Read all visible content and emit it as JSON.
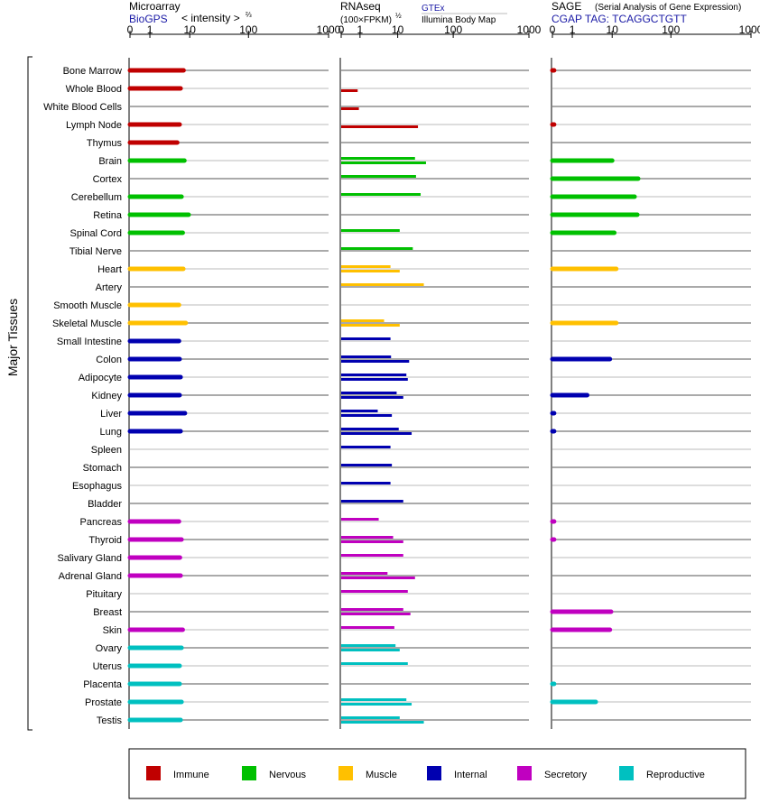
{
  "panels": {
    "microarray": {
      "title": "Microarray",
      "source": "BioGPS",
      "scale_label": "< intensity >",
      "scale_exp": "⅔",
      "ticks": [
        "0",
        "1",
        "10",
        "100",
        "1000"
      ]
    },
    "rnaseq": {
      "title": "RNAseq",
      "units_label": "(100×FPKM)",
      "units_exp": "½",
      "series_labels": [
        "GTEx",
        "Illumina Body Map"
      ],
      "ticks": [
        "0",
        "1",
        "10",
        "100",
        "1000"
      ]
    },
    "sage": {
      "title": "SAGE",
      "subtitle": "(Serial Analysis of Gene Expression)",
      "tag": "CGAP TAG: TCAGGCTGTT",
      "ticks": [
        "0",
        "1",
        "10",
        "100",
        "1000"
      ]
    }
  },
  "y_axis_label": "Major Tissues",
  "legend": [
    {
      "label": "Immune",
      "color": "#c00000"
    },
    {
      "label": "Nervous",
      "color": "#00c000"
    },
    {
      "label": "Muscle",
      "color": "#ffc000"
    },
    {
      "label": "Internal",
      "color": "#0000b0"
    },
    {
      "label": "Secretory",
      "color": "#c000c0"
    },
    {
      "label": "Reproductive",
      "color": "#00c0c0"
    }
  ],
  "chart_data": {
    "type": "bar",
    "x_scale": "power",
    "xlim": [
      0,
      1000
    ],
    "tissues": [
      {
        "name": "Bone Marrow",
        "group": "Immune",
        "micro": 7.5,
        "gtex": null,
        "ibm": null,
        "sage": 0.01
      },
      {
        "name": "Whole Blood",
        "group": "Immune",
        "micro": 6.5,
        "gtex": null,
        "ibm": 0.8,
        "sage": null
      },
      {
        "name": "White Blood Cells",
        "group": "Immune",
        "micro": null,
        "gtex": null,
        "ibm": 0.9,
        "sage": null
      },
      {
        "name": "Lymph Node",
        "group": "Immune",
        "micro": 6.2,
        "gtex": null,
        "ibm": 25,
        "sage": 0.01
      },
      {
        "name": "Thymus",
        "group": "Immune",
        "micro": 5.5,
        "gtex": null,
        "ibm": null,
        "sage": null
      },
      {
        "name": "Brain",
        "group": "Nervous",
        "micro": 7.8,
        "gtex": 22,
        "ibm": 35,
        "sage": 10
      },
      {
        "name": "Cortex",
        "group": "Nervous",
        "micro": null,
        "gtex": 23,
        "ibm": null,
        "sage": 30
      },
      {
        "name": "Cerebellum",
        "group": "Nervous",
        "micro": 6.8,
        "gtex": 28,
        "ibm": null,
        "sage": 26
      },
      {
        "name": "Retina",
        "group": "Nervous",
        "micro": 9.5,
        "gtex": null,
        "ibm": null,
        "sage": 29
      },
      {
        "name": "Spinal Cord",
        "group": "Nervous",
        "micro": 7.2,
        "gtex": 11,
        "ibm": null,
        "sage": 11
      },
      {
        "name": "Tibial Nerve",
        "group": "Nervous",
        "micro": null,
        "gtex": 20,
        "ibm": null,
        "sage": null
      },
      {
        "name": "Heart",
        "group": "Muscle",
        "micro": 7.4,
        "gtex": 7,
        "ibm": 11,
        "sage": 12
      },
      {
        "name": "Artery",
        "group": "Muscle",
        "micro": null,
        "gtex": 32,
        "ibm": null,
        "sage": null
      },
      {
        "name": "Smooth Muscle",
        "group": "Muscle",
        "micro": 6.0,
        "gtex": null,
        "ibm": null,
        "sage": null
      },
      {
        "name": "Skeletal Muscle",
        "group": "Muscle",
        "micro": 8.3,
        "gtex": 5,
        "ibm": 11,
        "sage": 12
      },
      {
        "name": "Small Intestine",
        "group": "Internal",
        "micro": 6.0,
        "gtex": 7,
        "ibm": null,
        "sage": null
      },
      {
        "name": "Colon",
        "group": "Internal",
        "micro": 6.2,
        "gtex": 7.2,
        "ibm": 17,
        "sage": 9
      },
      {
        "name": "Adipocyte",
        "group": "Internal",
        "micro": 6.5,
        "gtex": 15,
        "ibm": 16,
        "sage": null
      },
      {
        "name": "Kidney",
        "group": "Internal",
        "micro": 6.2,
        "gtex": 9.5,
        "ibm": 13,
        "sage": 2.8
      },
      {
        "name": "Liver",
        "group": "Internal",
        "micro": 8.0,
        "gtex": 3.5,
        "ibm": 7.5,
        "sage": 0.01
      },
      {
        "name": "Lung",
        "group": "Internal",
        "micro": 6.5,
        "gtex": 10.5,
        "ibm": 19,
        "sage": 0.01
      },
      {
        "name": "Spleen",
        "group": "Internal",
        "micro": null,
        "gtex": 7,
        "ibm": null,
        "sage": null
      },
      {
        "name": "Stomach",
        "group": "Internal",
        "micro": null,
        "gtex": 7.5,
        "ibm": null,
        "sage": null
      },
      {
        "name": "Esophagus",
        "group": "Internal",
        "micro": null,
        "gtex": 7,
        "ibm": null,
        "sage": null
      },
      {
        "name": "Bladder",
        "group": "Internal",
        "micro": null,
        "gtex": 13,
        "ibm": null,
        "sage": null
      },
      {
        "name": "Pancreas",
        "group": "Secretory",
        "micro": 6.0,
        "gtex": 3.7,
        "ibm": null,
        "sage": 0.01
      },
      {
        "name": "Thyroid",
        "group": "Secretory",
        "micro": 6.8,
        "gtex": 8,
        "ibm": 13,
        "sage": 0.01
      },
      {
        "name": "Salivary Gland",
        "group": "Secretory",
        "micro": 6.3,
        "gtex": 13,
        "ibm": null,
        "sage": null
      },
      {
        "name": "Adrenal Gland",
        "group": "Secretory",
        "micro": 6.5,
        "gtex": 6,
        "ibm": 22,
        "sage": null
      },
      {
        "name": "Pituitary",
        "group": "Secretory",
        "micro": null,
        "gtex": 16,
        "ibm": null,
        "sage": null
      },
      {
        "name": "Breast",
        "group": "Secretory",
        "micro": null,
        "gtex": 13,
        "ibm": 18,
        "sage": 9.5
      },
      {
        "name": "Skin",
        "group": "Secretory",
        "micro": 7.2,
        "gtex": 8.5,
        "ibm": null,
        "sage": 9
      },
      {
        "name": "Ovary",
        "group": "Reproductive",
        "micro": 6.8,
        "gtex": 9,
        "ibm": 11,
        "sage": null
      },
      {
        "name": "Uterus",
        "group": "Reproductive",
        "micro": 6.2,
        "gtex": 16,
        "ibm": null,
        "sage": null
      },
      {
        "name": "Placenta",
        "group": "Reproductive",
        "micro": 6.2,
        "gtex": null,
        "ibm": null,
        "sage": 0.01
      },
      {
        "name": "Prostate",
        "group": "Reproductive",
        "micro": 6.8,
        "gtex": 15,
        "ibm": 19,
        "sage": 4.5
      },
      {
        "name": "Testis",
        "group": "Reproductive",
        "micro": 6.5,
        "gtex": 11,
        "ibm": 32,
        "sage": null
      }
    ]
  }
}
